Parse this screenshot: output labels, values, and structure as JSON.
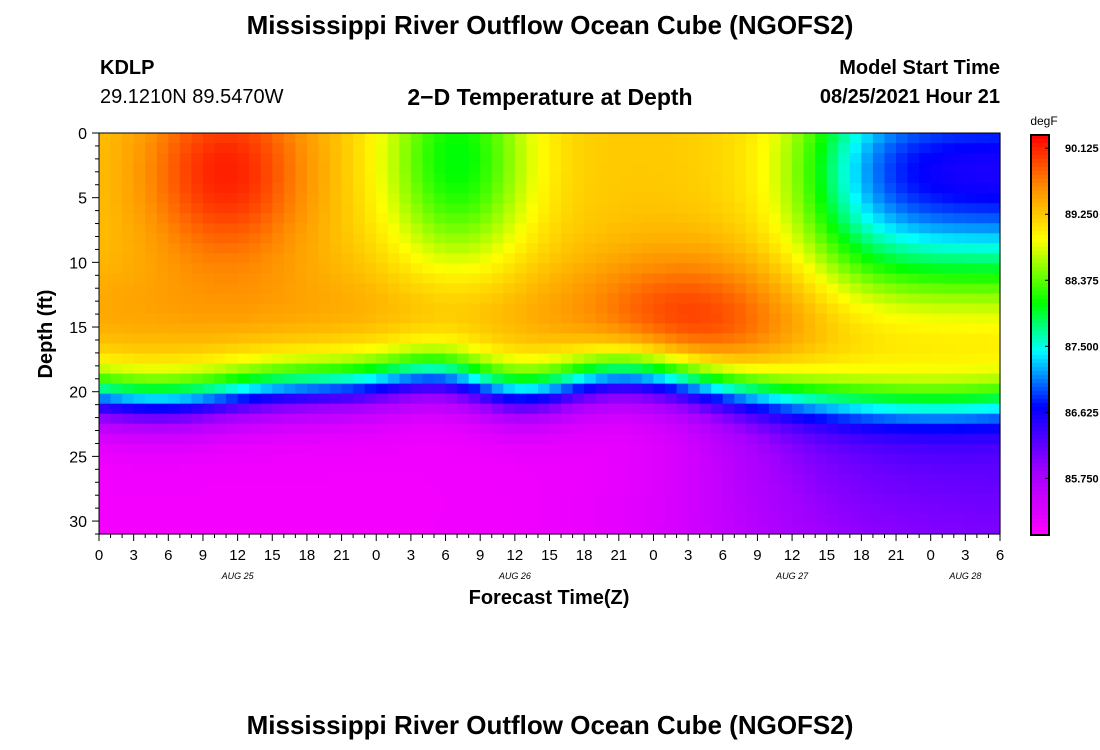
{
  "page": {
    "title_top": "Mississippi River Outflow Ocean Cube (NGOFS2)",
    "title_bottom": "Mississippi River Outflow Ocean Cube (NGOFS2)",
    "station_id": "KDLP",
    "station_coords": "29.1210N  89.5470W",
    "plot_title": "2−D Temperature at Depth",
    "model_start_label": "Model Start Time",
    "model_start_value": "08/25/2021 Hour 21"
  },
  "chart_data": {
    "type": "heatmap",
    "title": "2−D Temperature at Depth",
    "xlabel": "Forecast Time(Z)",
    "ylabel": "Depth (ft)",
    "x_range_hours": [
      0,
      78
    ],
    "y_range_ft": [
      0,
      31
    ],
    "y_ticks": [
      "0",
      "5",
      "10",
      "15",
      "20",
      "25",
      "30"
    ],
    "y_tick_values": [
      0,
      5,
      10,
      15,
      20,
      25,
      30
    ],
    "x_ticks": [
      "0",
      "3",
      "6",
      "9",
      "12",
      "15",
      "18",
      "21",
      "0",
      "3",
      "6",
      "9",
      "12",
      "15",
      "18",
      "21",
      "0",
      "3",
      "6",
      "9",
      "12",
      "15",
      "18",
      "21",
      "0",
      "3",
      "6"
    ],
    "date_labels": [
      {
        "label": "AUG 25",
        "hour": 12
      },
      {
        "label": "AUG 26",
        "hour": 36
      },
      {
        "label": "AUG 27",
        "hour": 60
      },
      {
        "label": "AUG 28",
        "hour": 75
      }
    ],
    "colorbar": {
      "unit": "degF",
      "min": 85.0,
      "max": 90.3,
      "labels": [
        "90.125",
        "89.250",
        "88.375",
        "87.500",
        "86.625",
        "85.750"
      ],
      "label_values": [
        90.125,
        89.25,
        88.375,
        87.5,
        86.625,
        85.75
      ]
    },
    "features": [
      {
        "desc": "warm surface core",
        "hour": 11,
        "depth_ft": 3,
        "value_degF": 90.2
      },
      {
        "desc": "cool surface pocket",
        "hour": 31,
        "depth_ft": 2,
        "value_degF": 88.0
      },
      {
        "desc": "warm subsurface core",
        "hour": 51,
        "depth_ft": 15,
        "value_degF": 89.7
      },
      {
        "desc": "cold surface region",
        "hour": 72,
        "depth_ft": 3,
        "value_degF": 86.2
      },
      {
        "desc": "bottom water",
        "hour": 5,
        "depth_ft": 30,
        "value_degF": 85.1
      }
    ]
  }
}
